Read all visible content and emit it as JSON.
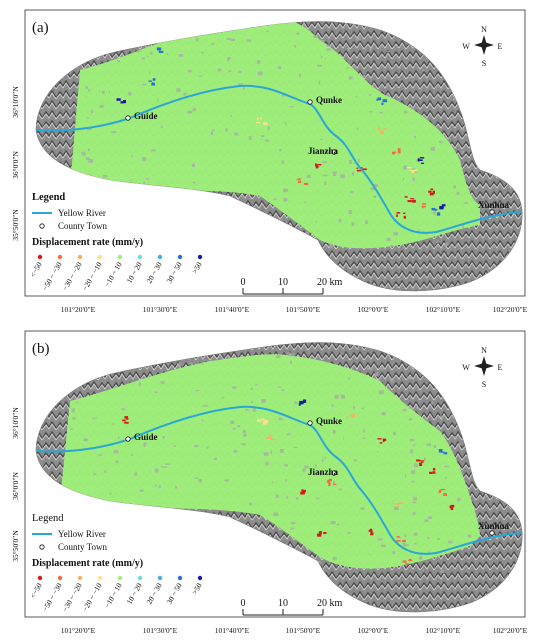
{
  "panels": [
    {
      "label": "(a)",
      "legend_title": "Legend",
      "legend_title_bold": true,
      "legend_items": [
        "Yellow River",
        "County Town"
      ],
      "displacement_title": "Displacement rate (mm/y)",
      "classes": [
        "<−50",
        "−50 ~ −30",
        "−30 ~ −20",
        "−20 ~ −10",
        "−10 ~ 10",
        "10 ~ 20",
        "20 ~ 30",
        "30 ~ 50",
        ">50"
      ],
      "towns": [
        "Guide",
        "Qunke",
        "Jianzha",
        "Xunhua"
      ],
      "lon_labels": [
        "101°20'0\"E",
        "101°30'0\"E",
        "101°40'0\"E",
        "101°50'0\"E",
        "102°0'0\"E",
        "102°10'0\"E",
        "102°20'0\"E"
      ],
      "lat_labels": [
        "36°10'0\"N",
        "36°0'0\"N",
        "35°50'0\"N"
      ],
      "scale_labels": [
        "0",
        "10",
        "20 km"
      ],
      "compass": {
        "n": "N",
        "s": "S",
        "e": "E",
        "w": "W"
      }
    },
    {
      "label": "(b)",
      "legend_title": "Legend",
      "legend_title_bold": false,
      "legend_items": [
        "Yellow River",
        "County Town"
      ],
      "displacement_title": "Displacement rate (mm/y)",
      "classes": [
        "<−50",
        "−50 ~ −30",
        "−30 ~ −20",
        "−20 ~ −10",
        "−10 ~ 10",
        "10 ~ 20",
        "20 ~ 30",
        "30 ~ 50",
        ">50"
      ],
      "towns": [
        "Guide",
        "Qunke",
        "Jianzha",
        "Xunhua"
      ],
      "lon_labels": [
        "101°20'0\"E",
        "101°30'0\"E",
        "101°40'0\"E",
        "101°50'0\"E",
        "102°0'0\"E",
        "102°10'0\"E",
        "102°20'0\"E"
      ],
      "lat_labels": [
        "36°10'0\"N",
        "36°0'0\"N",
        "35°50'0\"N"
      ],
      "scale_labels": [
        "0",
        "10",
        "20 km"
      ],
      "compass": {
        "n": "N",
        "s": "S",
        "e": "E",
        "w": "W"
      }
    }
  ],
  "colors": {
    "terrain": "#8c8c8c",
    "terrain_dark": "#4a4a4a",
    "terrain_light": "#d4d4d4",
    "stable": "#9ef07a",
    "river": "#2aa7d4",
    "class_colors": [
      "#d7191c",
      "#f46d43",
      "#fdae61",
      "#fee08b",
      "#9ef07a",
      "#66e0e0",
      "#3fb0e8",
      "#2b6fd6",
      "#1a1aa6"
    ]
  }
}
